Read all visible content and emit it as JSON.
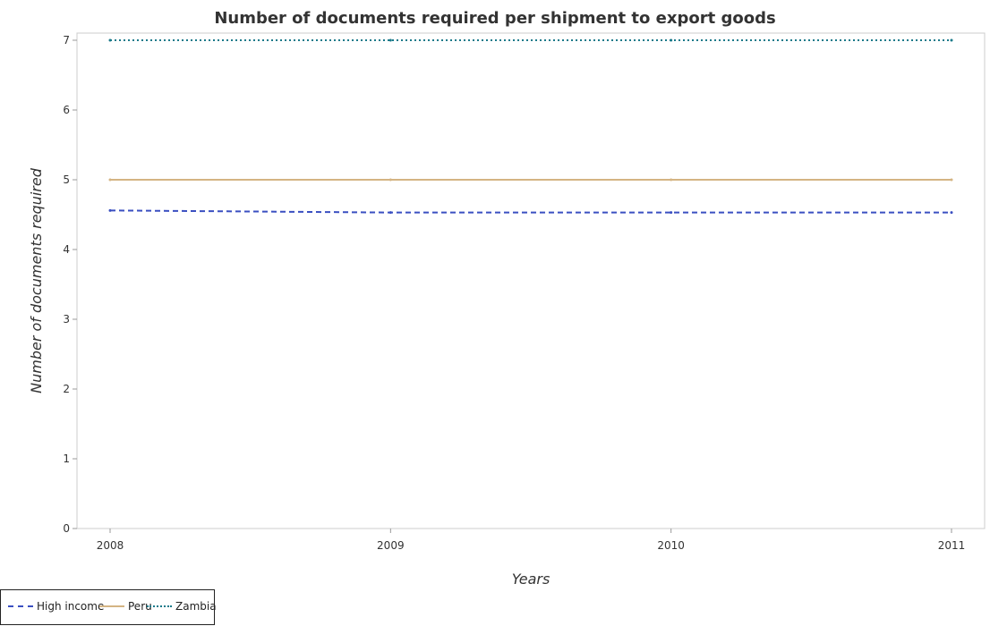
{
  "chart_data": {
    "type": "line",
    "title": "Number of documents required per shipment to export goods",
    "xlabel": "Years",
    "ylabel": "Number of documents required",
    "categories": [
      "2008",
      "2009",
      "2010",
      "2011"
    ],
    "ylim": [
      0,
      7
    ],
    "yticks": [
      "0",
      "1",
      "2",
      "3",
      "4",
      "5",
      "6",
      "7"
    ],
    "grid": false,
    "legend_position": "bottom-left",
    "series": [
      {
        "name": "High income",
        "values": [
          4.56,
          4.53,
          4.53,
          4.53
        ],
        "color": "#3a4fc1",
        "dash": "6,4"
      },
      {
        "name": "Peru",
        "values": [
          5,
          5,
          5,
          5
        ],
        "color": "#d4b483",
        "dash": "none"
      },
      {
        "name": "Zambia",
        "values": [
          7,
          7,
          7,
          7
        ],
        "color": "#1a7a8a",
        "dash": "2,3"
      }
    ]
  }
}
